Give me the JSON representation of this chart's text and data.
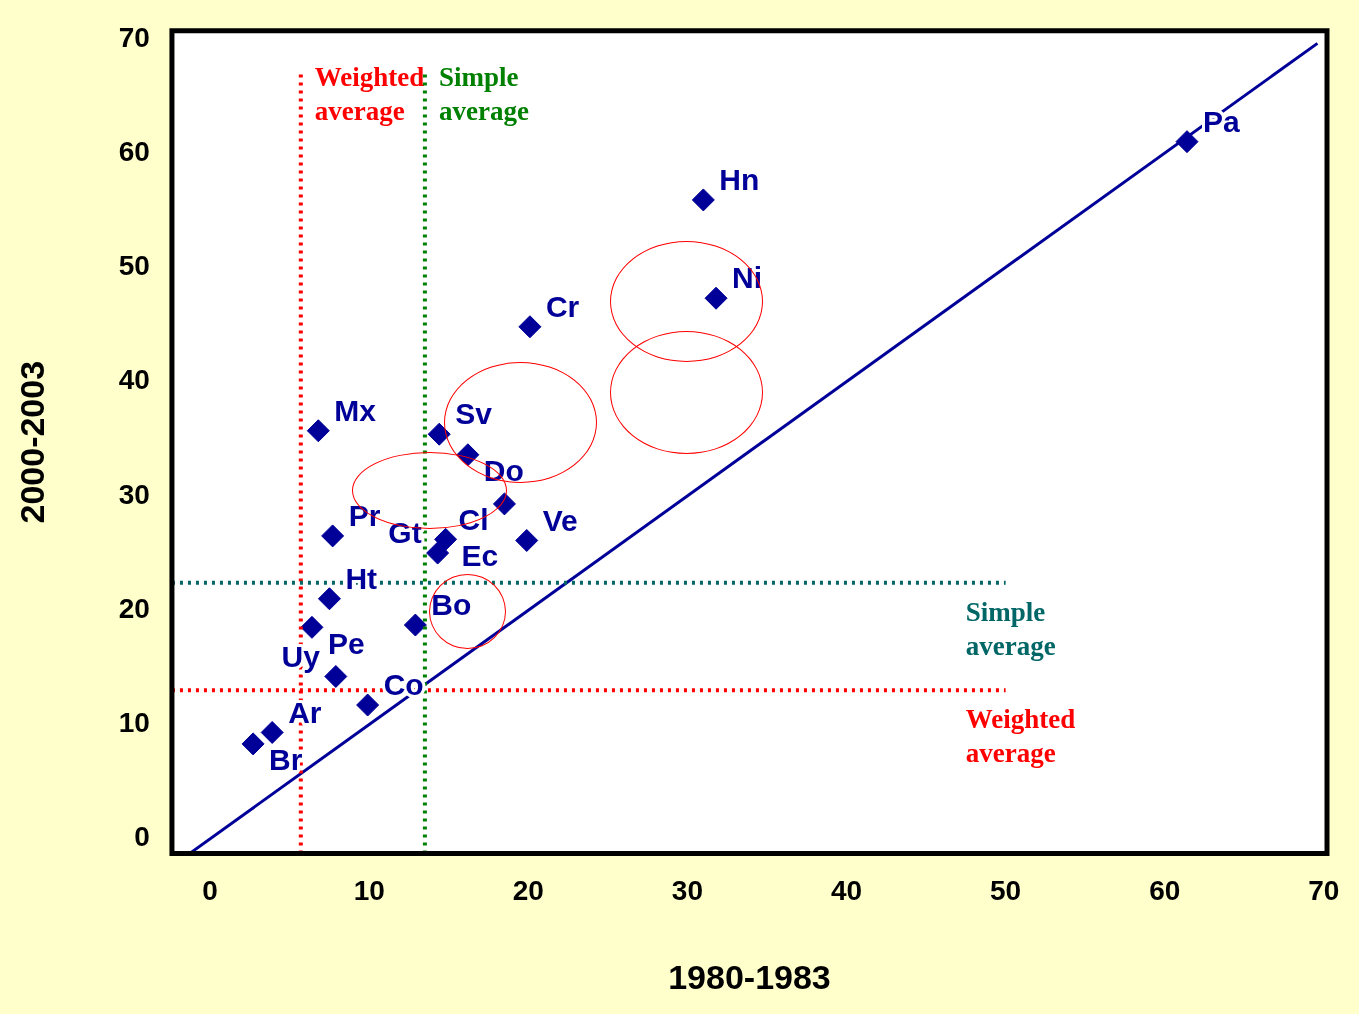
{
  "chart_data": {
    "type": "scatter",
    "xlabel": "1980-1983",
    "ylabel": "2000-2003",
    "xlim": [
      -2.4,
      70.2
    ],
    "ylim": [
      -1.3,
      70.7
    ],
    "xticks": [
      0,
      10,
      20,
      30,
      40,
      50,
      60,
      70
    ],
    "yticks": [
      0,
      10,
      20,
      30,
      40,
      50,
      60,
      70
    ],
    "grid": false,
    "legend": false,
    "marker": "diamond",
    "series": [
      {
        "color": "#000099",
        "x": [
          61.4,
          31.0,
          31.8,
          20.1,
          6.8,
          14.4,
          16.2,
          18.5,
          7.7,
          14.8,
          14.3,
          19.9,
          7.5,
          6.4,
          12.9,
          7.9,
          9.9,
          3.9,
          2.7
        ],
        "values": [
          61.0,
          55.9,
          47.3,
          44.8,
          35.7,
          35.4,
          33.6,
          29.3,
          26.5,
          26.2,
          25.0,
          26.1,
          21.0,
          18.5,
          18.7,
          14.2,
          11.7,
          9.3,
          8.3
        ],
        "value_labels": [
          "Pa",
          "Hn",
          "Ni",
          "Cr",
          "Mx",
          "Sv",
          "Do",
          "Cl",
          "Pr",
          "Ec",
          "Gt",
          "Ve",
          "Ht",
          "Pe",
          "Bo",
          "Uy",
          "Co",
          "Ar",
          "Br"
        ]
      },
      {
        "type": "line",
        "color": "#000099",
        "marker": "none",
        "x": [
          -1.3,
          69.6
        ],
        "values": [
          -1.3,
          69.6
        ]
      }
    ],
    "ref_lines": [
      {
        "axis": "x",
        "value": 5.7,
        "label": "Weighted average",
        "color": "#ff0000",
        "line_style": "dotted"
      },
      {
        "axis": "x",
        "value": 13.5,
        "label": "Simple average",
        "color": "#008000",
        "line_style": "dotted"
      },
      {
        "axis": "y",
        "value": 22.4,
        "label": "Simple average",
        "color": "#006666",
        "line_style": "dotted"
      },
      {
        "axis": "y",
        "value": 13.0,
        "label": "Weighted average",
        "color": "#ff0000",
        "line_style": "dotted"
      }
    ]
  }
}
